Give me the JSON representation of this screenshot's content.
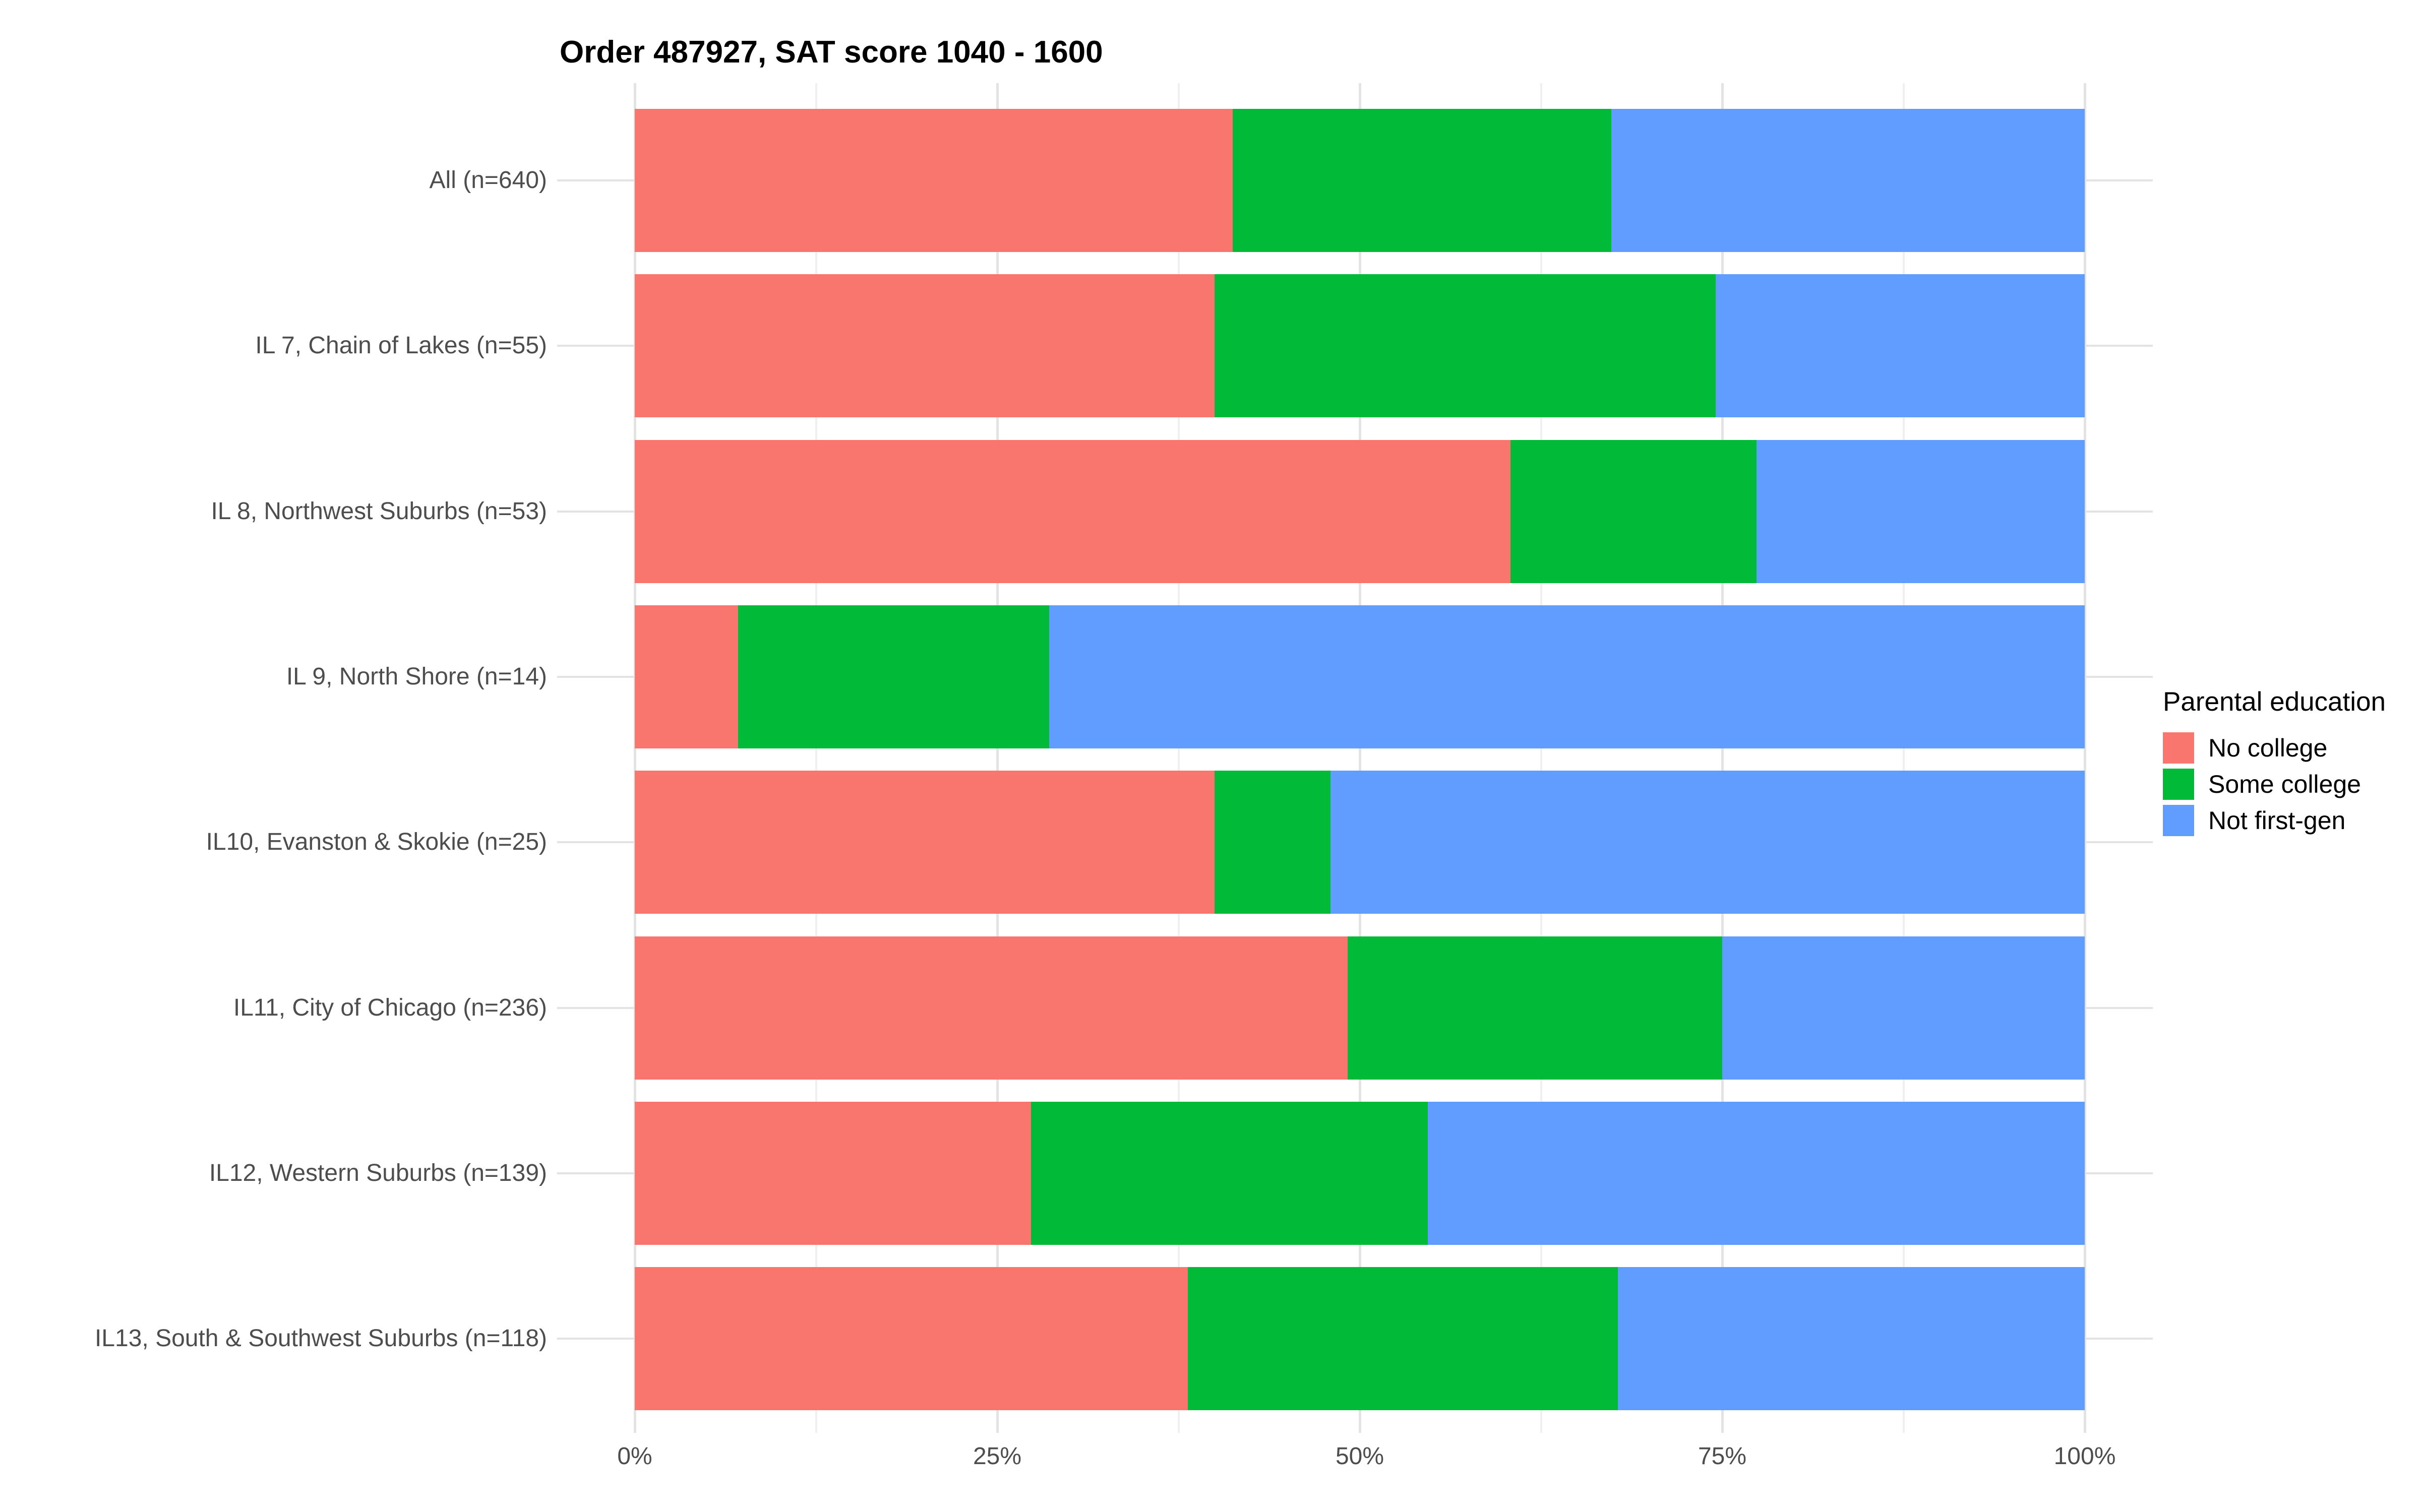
{
  "title": "Order 487927, SAT score 1040 - 1600",
  "chart_data": {
    "type": "bar",
    "orientation": "horizontal",
    "stacked": true,
    "units": "percent",
    "title": "Order 487927, SAT score 1040 - 1600",
    "categories": [
      "All (n=640)",
      "IL 7, Chain of Lakes (n=55)",
      "IL 8, Northwest Suburbs (n=53)",
      "IL 9, North Shore (n=14)",
      "IL10, Evanston & Skokie (n=25)",
      "IL11, City of Chicago (n=236)",
      "IL12, Western Suburbs (n=139)",
      "IL13, South & Southwest Suburbs (n=118)"
    ],
    "series": [
      {
        "name": "No college",
        "color": "#F8766D",
        "values": [
          41.25,
          40.0,
          60.38,
          7.14,
          40.0,
          49.15,
          27.34,
          38.14
        ]
      },
      {
        "name": "Some college",
        "color": "#00BA38",
        "values": [
          26.09,
          34.55,
          16.98,
          21.43,
          8.0,
          25.85,
          27.34,
          29.66
        ]
      },
      {
        "name": "Not first-gen",
        "color": "#619CFF",
        "values": [
          32.66,
          25.45,
          22.64,
          71.43,
          52.0,
          25.0,
          45.32,
          32.2
        ]
      }
    ],
    "x_ticks": [
      {
        "label": "0%",
        "value": 0
      },
      {
        "label": "25%",
        "value": 25
      },
      {
        "label": "50%",
        "value": 50
      },
      {
        "label": "75%",
        "value": 75
      },
      {
        "label": "100%",
        "value": 100
      }
    ],
    "xlim": [
      0,
      100
    ],
    "legend_title": "Parental education",
    "legend_position": "right",
    "grid": {
      "major_every": 25,
      "minor_every": 12.5,
      "major_color": "#E3E3E3",
      "minor_color": "#F0F0F0"
    }
  }
}
